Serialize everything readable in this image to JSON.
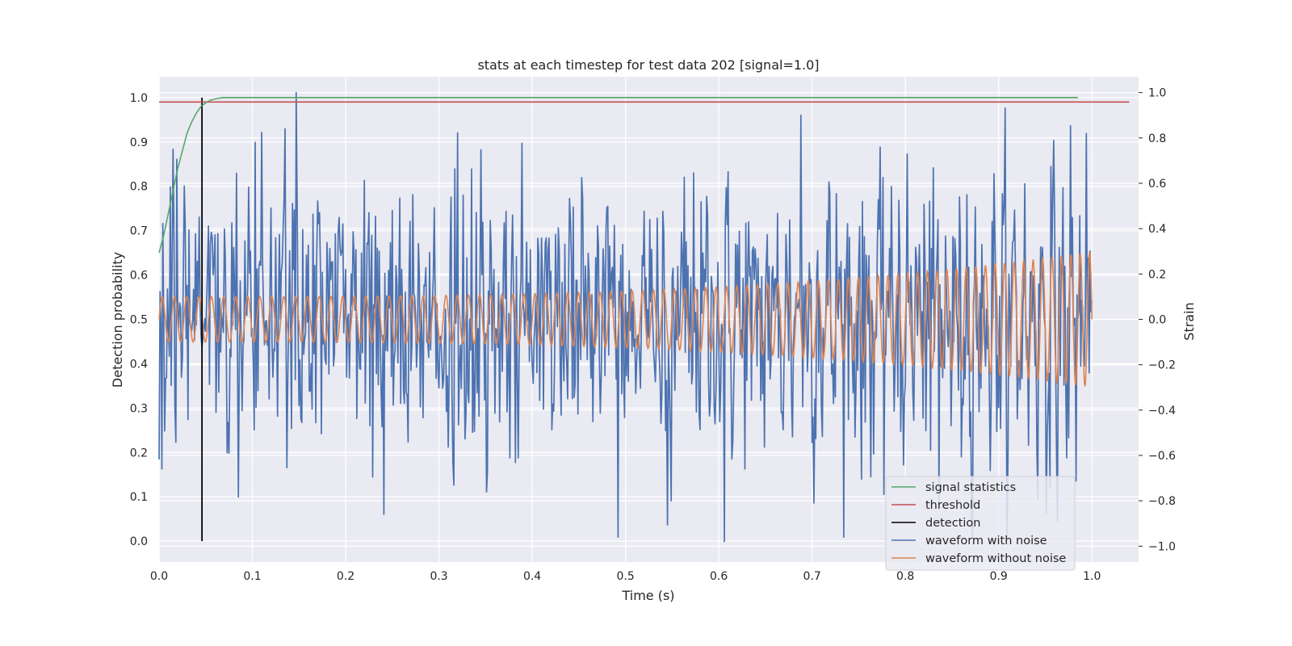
{
  "chart_data": {
    "type": "line",
    "title": "stats at each timestep for test data 202 [signal=1.0]",
    "xlabel": "Time (s)",
    "ylabel_left": "Detection probability",
    "ylabel_right": "Strain",
    "xlim": [
      0.0,
      1.05
    ],
    "ylim_left": [
      -0.047,
      1.047
    ],
    "ylim_right": [
      -1.07,
      1.07
    ],
    "x_ticks": [
      "0.0",
      "0.1",
      "0.2",
      "0.3",
      "0.4",
      "0.5",
      "0.6",
      "0.7",
      "0.8",
      "0.9",
      "1.0"
    ],
    "y_left_ticks": [
      "0.0",
      "0.1",
      "0.2",
      "0.3",
      "0.4",
      "0.5",
      "0.6",
      "0.7",
      "0.8",
      "0.9",
      "1.0"
    ],
    "y_right_ticks": [
      "−1.0",
      "−0.8",
      "−0.6",
      "−0.4",
      "−0.2",
      "0.0",
      "0.2",
      "0.4",
      "0.6",
      "0.8",
      "1.0"
    ],
    "grid": true,
    "legend_position": "bottom-right",
    "colors": {
      "signal_statistics": "#55a868",
      "threshold": "#c44e52",
      "detection": "#000000",
      "waveform_with_noise": "#4c72b0",
      "waveform_without_noise": "#dd8452",
      "background": "#eaeaf2"
    },
    "series": [
      {
        "name": "signal statistics",
        "axis": "left",
        "x": [
          0.0,
          0.005,
          0.01,
          0.015,
          0.02,
          0.025,
          0.03,
          0.035,
          0.04,
          0.045,
          0.05,
          0.055,
          0.06,
          0.065,
          0.07,
          0.08,
          0.1,
          0.2,
          0.4,
          0.6,
          0.8,
          0.985
        ],
        "y": [
          0.65,
          0.69,
          0.74,
          0.79,
          0.84,
          0.88,
          0.92,
          0.945,
          0.965,
          0.98,
          0.988,
          0.994,
          0.997,
          0.999,
          1.0,
          1.0,
          1.0,
          1.0,
          1.0,
          1.0,
          1.0,
          1.0
        ]
      },
      {
        "name": "threshold",
        "axis": "left",
        "x": [
          0.0,
          1.04
        ],
        "y": [
          0.99,
          0.99
        ]
      },
      {
        "name": "detection",
        "axis": "left",
        "x": [
          0.046,
          0.046
        ],
        "y": [
          0.0,
          1.0
        ]
      },
      {
        "name": "waveform with noise",
        "axis": "right",
        "amplitude": 0.3,
        "peaks": [
          {
            "x": 0.147,
            "y": 1.0
          },
          {
            "x": 0.103,
            "y": 0.78
          },
          {
            "x": 0.688,
            "y": 0.9
          },
          {
            "x": 0.994,
            "y": 0.82
          },
          {
            "x": 0.241,
            "y": -0.86
          },
          {
            "x": 0.606,
            "y": -0.98
          },
          {
            "x": 0.549,
            "y": -0.8
          },
          {
            "x": 0.836,
            "y": -0.82
          },
          {
            "x": 0.015,
            "y": 0.75
          },
          {
            "x": 0.003,
            "y": -0.66
          }
        ]
      },
      {
        "name": "waveform without noise",
        "axis": "right",
        "frequency_hz": [
          75,
          100
        ],
        "amplitude": [
          0.1,
          0.3
        ]
      }
    ]
  }
}
